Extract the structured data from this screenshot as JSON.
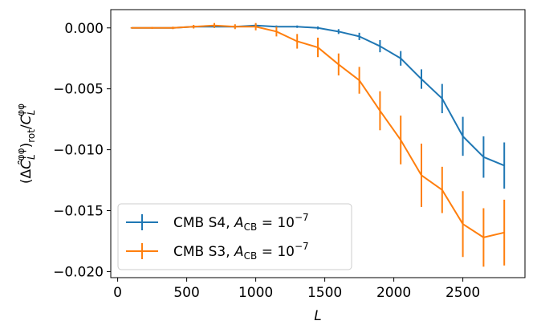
{
  "chart_data": {
    "type": "line",
    "xlabel": "L",
    "ylabel": "(ΔĈ_L^{φφ})_rot / C_L^{φφ}",
    "xlim": [
      -50,
      2950
    ],
    "ylim": [
      -0.0205,
      0.0015
    ],
    "xticks": [
      0,
      500,
      1000,
      1500,
      2000,
      2500
    ],
    "xtick_labels": [
      "0",
      "500",
      "1000",
      "1500",
      "2000",
      "2500"
    ],
    "yticks": [
      0.0,
      -0.005,
      -0.01,
      -0.015,
      -0.02
    ],
    "ytick_labels": [
      "0.000",
      "−0.005",
      "−0.010",
      "−0.015",
      "−0.020"
    ],
    "grid": false,
    "legend_position": "lower-left",
    "series": [
      {
        "name": "CMB S4, A_CB = 10^-7",
        "legend": {
          "main": "CMB S4, ",
          "a": "A",
          "sub": "CB",
          "eq": " = 10",
          "exp": "−7"
        },
        "color": "#1f77b4",
        "x": [
          100,
          250,
          400,
          550,
          700,
          850,
          1000,
          1150,
          1300,
          1450,
          1600,
          1750,
          1900,
          2050,
          2200,
          2350,
          2500,
          2650,
          2800
        ],
        "y": [
          0.0,
          0.0,
          0.0,
          0.0001,
          0.0001,
          0.0001,
          0.0002,
          0.0001,
          0.0001,
          0.0,
          -0.0003,
          -0.0007,
          -0.0015,
          -0.0025,
          -0.0042,
          -0.0058,
          -0.0089,
          -0.0106,
          -0.0113
        ],
        "err": [
          5e-05,
          5e-05,
          5e-05,
          8e-05,
          0.0001,
          0.0001,
          0.00015,
          0.0001,
          0.0001,
          0.00012,
          0.0002,
          0.0003,
          0.0005,
          0.0006,
          0.0008,
          0.0012,
          0.0016,
          0.0017,
          0.0019
        ]
      },
      {
        "name": "CMB S3, A_CB = 10^-7",
        "legend": {
          "main": "CMB S3, ",
          "a": "A",
          "sub": "CB",
          "eq": " = 10",
          "exp": "−7"
        },
        "color": "#ff7f0e",
        "x": [
          100,
          250,
          400,
          550,
          700,
          850,
          1000,
          1150,
          1300,
          1450,
          1600,
          1750,
          1900,
          2050,
          2200,
          2350,
          2500,
          2650,
          2800
        ],
        "y": [
          0.0,
          0.0,
          0.0,
          0.0001,
          0.0002,
          0.0001,
          0.0001,
          -0.0003,
          -0.0011,
          -0.0016,
          -0.003,
          -0.0043,
          -0.0068,
          -0.0092,
          -0.0121,
          -0.0133,
          -0.0161,
          -0.0172,
          -0.0168
        ],
        "err": [
          5e-05,
          8e-05,
          0.0001,
          0.00015,
          0.0002,
          0.0002,
          0.0003,
          0.0004,
          0.0006,
          0.0008,
          0.0009,
          0.0011,
          0.0016,
          0.002,
          0.0026,
          0.0019,
          0.0027,
          0.0024,
          0.0027
        ]
      }
    ]
  }
}
